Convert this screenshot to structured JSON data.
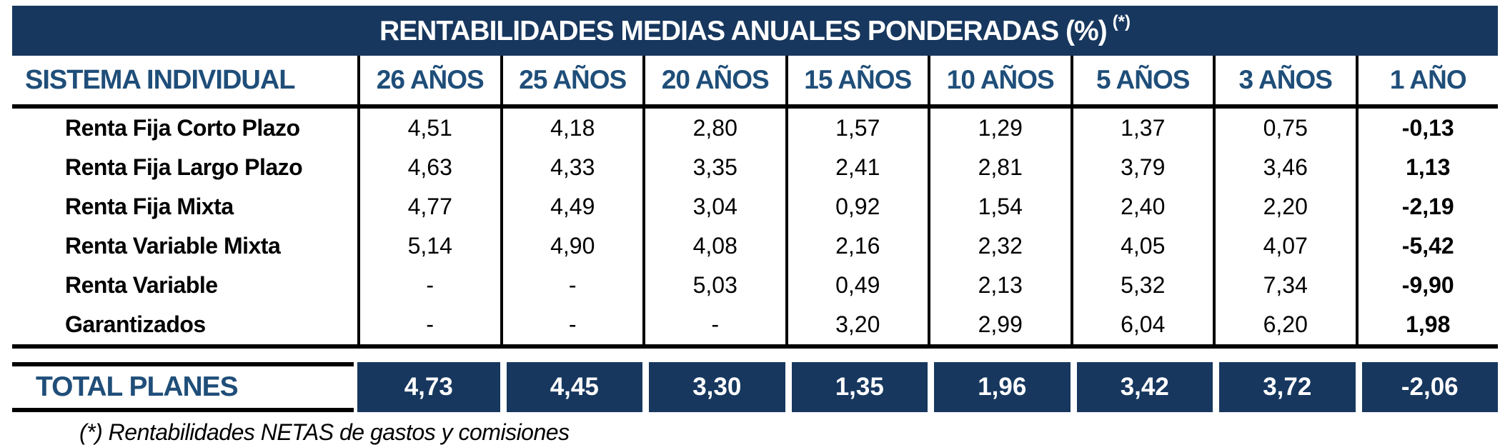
{
  "chart_data": {
    "type": "table",
    "title": "RENTABILIDADES MEDIAS ANUALES PONDERADAS (%)",
    "title_superscript": "(*)",
    "corner_header": "SISTEMA INDIVIDUAL",
    "columns": [
      "26 AÑOS",
      "25 AÑOS",
      "20 AÑOS",
      "15 AÑOS",
      "10 AÑOS",
      "5 AÑOS",
      "3 AÑOS",
      "1 AÑO"
    ],
    "rows": [
      {
        "label": "Renta Fija Corto Plazo",
        "values": [
          "4,51",
          "4,18",
          "2,80",
          "1,57",
          "1,29",
          "1,37",
          "0,75",
          "-0,13"
        ]
      },
      {
        "label": "Renta Fija Largo Plazo",
        "values": [
          "4,63",
          "4,33",
          "3,35",
          "2,41",
          "2,81",
          "3,79",
          "3,46",
          "1,13"
        ]
      },
      {
        "label": "Renta Fija Mixta",
        "values": [
          "4,77",
          "4,49",
          "3,04",
          "0,92",
          "1,54",
          "2,40",
          "2,20",
          "-2,19"
        ]
      },
      {
        "label": "Renta Variable Mixta",
        "values": [
          "5,14",
          "4,90",
          "4,08",
          "2,16",
          "2,32",
          "4,05",
          "4,07",
          "-5,42"
        ]
      },
      {
        "label": "Renta Variable",
        "values": [
          "-",
          "-",
          "5,03",
          "0,49",
          "2,13",
          "5,32",
          "7,34",
          "-9,90"
        ]
      },
      {
        "label": "Garantizados",
        "values": [
          "-",
          "-",
          "-",
          "3,20",
          "2,99",
          "6,04",
          "6,20",
          "1,98"
        ]
      }
    ],
    "total": {
      "label": "TOTAL PLANES",
      "values": [
        "4,73",
        "4,45",
        "3,30",
        "1,35",
        "1,96",
        "3,42",
        "3,72",
        "-2,06"
      ]
    },
    "footnote": "(*) Rentabilidades NETAS de gastos y comisiones",
    "layout": {
      "grid": "off",
      "decimal_separator": ",",
      "units": "percent"
    }
  },
  "colors": {
    "navy_background": "#17375E",
    "header_text": "#1F4E79",
    "body_text": "#000000",
    "title_text": "#FFFFFF"
  }
}
